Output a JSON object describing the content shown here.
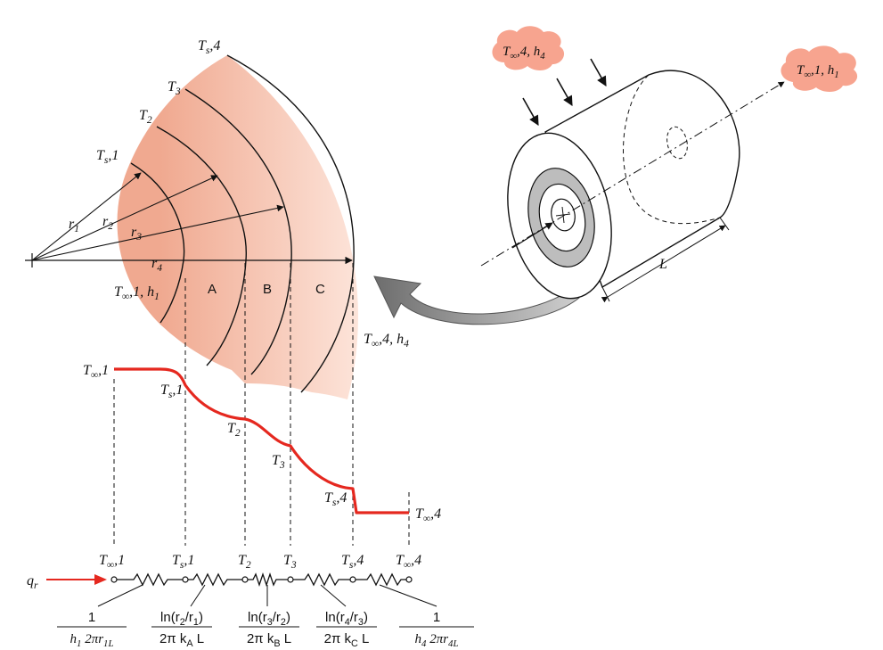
{
  "colors": {
    "layer_inner": "#f0a990",
    "layer_outer": "#fde6dc",
    "profile_line": "#e5281f",
    "flux_arrow": "#e5281f",
    "fluid_cloud": "#f7a48f",
    "curved_arrow": "#8c8c8c",
    "line": "#111111"
  },
  "cross_section": {
    "surface_outer": "T_s,4",
    "interface_3": "T_3",
    "interface_2": "T_2",
    "surface_inner": "T_s,1",
    "radius_1": "r_1",
    "radius_2": "r_2",
    "radius_3": "r_3",
    "radius_4": "r_4",
    "inner_fluid": "T_∞,1, h_1",
    "outer_fluid": "T_∞,4, h_4",
    "layer_a": "A",
    "layer_b": "B",
    "layer_c": "C"
  },
  "cylinder": {
    "outer_fluid": "T_∞,4, h_4",
    "inner_fluid": "T_∞,1, h_1",
    "length": "L"
  },
  "temperature_profile": {
    "start": "T_∞,1",
    "point_s1": "T_s,1",
    "point_2": "T_2",
    "point_3": "T_3",
    "point_s4": "T_s,4",
    "end": "T_∞,4"
  },
  "thermal_circuit": {
    "heat_rate": "q_r",
    "nodes": [
      "T_∞,1",
      "T_s,1",
      "T_2",
      "T_3",
      "T_s,4",
      "T_∞,4"
    ],
    "resistances": [
      {
        "num": "1",
        "den": "h_1 2πr_1L"
      },
      {
        "num": "ln(r_2/r_1)",
        "den": "2π k_A L"
      },
      {
        "num": "ln(r_3/r_2)",
        "den": "2π k_B L"
      },
      {
        "num": "ln(r_4/r_3)",
        "den": "2π k_C L"
      },
      {
        "num": "1",
        "den": "h_4 2πr_4L"
      }
    ]
  }
}
